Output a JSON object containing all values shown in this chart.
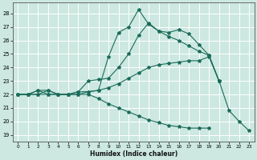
{
  "xlabel": "Humidex (Indice chaleur)",
  "bg_color": "#cce8e0",
  "grid_color": "#ffffff",
  "line_color": "#1a6b5a",
  "xlim": [
    -0.5,
    23.5
  ],
  "ylim": [
    18.5,
    28.8
  ],
  "yticks": [
    19,
    20,
    21,
    22,
    23,
    24,
    25,
    26,
    27,
    28
  ],
  "xticks": [
    0,
    1,
    2,
    3,
    4,
    5,
    6,
    7,
    8,
    9,
    10,
    11,
    12,
    13,
    14,
    15,
    16,
    17,
    18,
    19,
    20,
    21,
    22,
    23
  ],
  "series": [
    {
      "x": [
        0,
        1,
        2,
        3,
        4,
        5,
        6,
        7,
        8,
        9,
        10,
        11,
        12,
        13,
        14,
        15,
        16,
        17,
        18,
        19,
        20,
        21,
        22,
        23
      ],
      "y": [
        22,
        22,
        22.3,
        22.3,
        22.0,
        22.0,
        22.2,
        22.2,
        22.3,
        24.8,
        26.6,
        27.0,
        28.3,
        27.2,
        26.7,
        26.6,
        26.8,
        26.5,
        25.7,
        24.9,
        23.0,
        20.8,
        20.0,
        19.3
      ]
    },
    {
      "x": [
        0,
        1,
        2,
        3,
        4,
        5,
        6,
        7,
        8,
        9,
        10,
        11,
        12,
        13,
        14,
        15,
        16,
        17,
        18,
        19,
        20
      ],
      "y": [
        22,
        22,
        22.3,
        22.0,
        22.0,
        22.0,
        22.2,
        23.0,
        23.1,
        23.2,
        24.0,
        25.0,
        26.4,
        27.3,
        26.7,
        26.3,
        26.0,
        25.6,
        25.2,
        24.9,
        23.0
      ]
    },
    {
      "x": [
        0,
        1,
        2,
        3,
        4,
        5,
        6,
        7,
        8,
        9,
        10,
        11,
        12,
        13,
        14,
        15,
        16,
        17,
        18,
        19,
        20
      ],
      "y": [
        22,
        22,
        22.0,
        22.0,
        22.0,
        22.0,
        22.0,
        22.2,
        22.3,
        22.5,
        22.8,
        23.2,
        23.6,
        24.0,
        24.2,
        24.3,
        24.4,
        24.5,
        24.5,
        24.8,
        23.0
      ]
    },
    {
      "x": [
        0,
        1,
        2,
        3,
        4,
        5,
        6,
        7,
        8,
        9,
        10,
        11,
        12,
        13,
        14,
        15,
        16,
        17,
        18,
        19,
        20,
        21,
        22,
        23
      ],
      "y": [
        22,
        22,
        22.0,
        22.3,
        22.0,
        22.0,
        22.0,
        22.0,
        21.7,
        21.3,
        21.0,
        20.7,
        20.4,
        20.1,
        19.9,
        19.7,
        19.6,
        19.5,
        19.5,
        19.5,
        null,
        null,
        null,
        null
      ]
    }
  ]
}
